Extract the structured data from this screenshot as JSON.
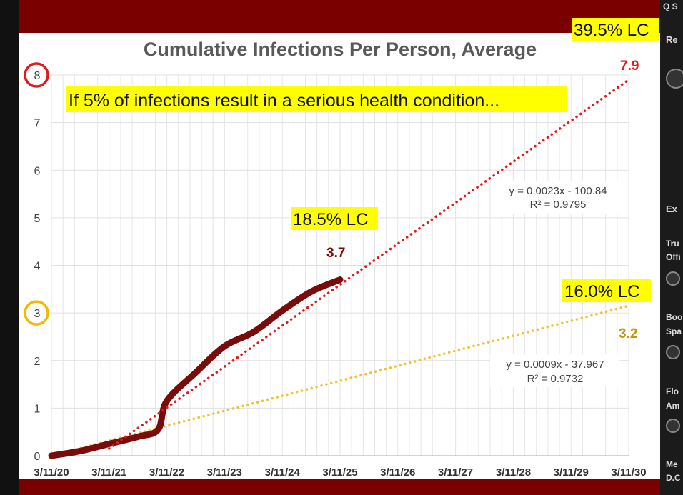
{
  "sidebar": {
    "fragments": [
      "Q S",
      "Re",
      "Ex",
      "Tru",
      "Offi",
      "Boo",
      "Spa",
      "Flo",
      "Am",
      "Me",
      "D.C"
    ]
  },
  "colors": {
    "frame": "#7a0000",
    "red_trend": "#e11b1b",
    "yellow_trend": "#f2c12e",
    "actual_line": "#7a0b0b",
    "highlight": "#ffff00",
    "red_circle": "#e11b1b",
    "yellow_circle": "#f5b800"
  },
  "chart_data": {
    "type": "line",
    "title": "Cumulative Infections Per Person, Average",
    "annotation_top": "If 5% of infections result in a serious health condition...",
    "x_tick_labels": [
      "3/11/20",
      "3/11/21",
      "3/11/22",
      "3/11/23",
      "3/11/24",
      "3/11/25",
      "3/11/26",
      "3/11/27",
      "3/11/28",
      "3/11/29",
      "3/11/30"
    ],
    "y_tick_labels": [
      "0",
      "1",
      "2",
      "3",
      "4",
      "5",
      "6",
      "7",
      "8"
    ],
    "xlim": [
      "3/11/20",
      "3/11/30"
    ],
    "ylim": [
      0,
      8
    ],
    "grid": true,
    "circled_y_ticks": [
      {
        "label": "8",
        "color": "red"
      },
      {
        "label": "3",
        "color": "yellow"
      }
    ],
    "series": [
      {
        "style": "thick-solid",
        "x": [
          "3/11/20",
          "9/11/20",
          "3/11/21",
          "9/11/21",
          "1/15/22",
          "3/11/22",
          "9/11/22",
          "3/11/23",
          "9/11/23",
          "3/11/24",
          "9/11/24",
          "3/11/25"
        ],
        "y": [
          0.0,
          0.1,
          0.25,
          0.4,
          0.55,
          1.15,
          1.75,
          2.3,
          2.6,
          3.05,
          3.45,
          3.7
        ]
      },
      {
        "style": "dotted-red-trend",
        "x": [
          "3/11/21",
          "3/11/30"
        ],
        "y": [
          0.15,
          7.9
        ]
      },
      {
        "style": "dotted-yellow-trend",
        "x": [
          "3/11/20",
          "3/11/30"
        ],
        "y": [
          0.0,
          3.15
        ]
      }
    ],
    "annotations": {
      "lc_top": "39.5% LC",
      "val_top": "7.9",
      "lc_mid": "18.5% LC",
      "val_mid": "3.7",
      "lc_low": "16.0% LC",
      "val_low": "3.2",
      "eq_red_1": "y = 0.0023x - 100.84",
      "eq_red_2": "R² = 0.9795",
      "eq_yel_1": "y = 0.0009x - 37.967",
      "eq_yel_2": "R² = 0.9732"
    }
  }
}
